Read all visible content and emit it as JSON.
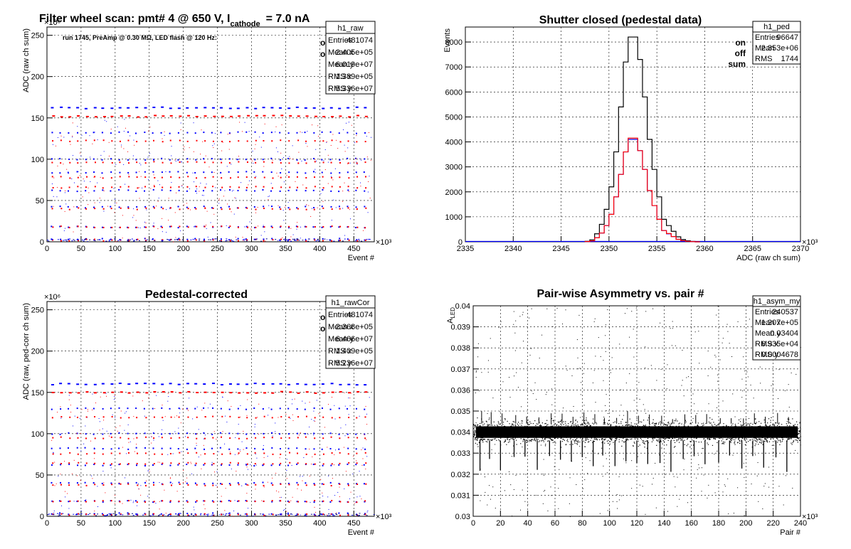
{
  "chart_data": [
    {
      "id": "raw",
      "type": "scatter",
      "title": "Filter wheel scan: pmt#   4 @   650 V, I",
      "title_sub": "cathode",
      "title_tail": "= 7.0 nA",
      "note": "run 1745, PreAmp @ 0.30 MΩ, LED flash @  120 Hz:",
      "xlabel": "Event #",
      "ylabel": "ADC (raw ch sum)",
      "x_mult": "×10³",
      "y_mult": "×10⁶",
      "xlim": [
        0,
        480
      ],
      "ylim": [
        0,
        260
      ],
      "xticks": [
        0,
        50,
        100,
        150,
        200,
        250,
        300,
        350,
        400,
        450
      ],
      "yticks": [
        0,
        50,
        100,
        150,
        200,
        250
      ],
      "legend": [
        {
          "label": "on",
          "color": "#0000ff"
        },
        {
          "label": "off",
          "color": "#ff0000"
        }
      ],
      "stats": {
        "name": "h1_raw",
        "rows": [
          [
            "Entries",
            "481074"
          ],
          [
            "Mean x",
            "2.405e+05"
          ],
          [
            "Mean y",
            "6.019e+07"
          ],
          [
            "RMS x",
            "1.389e+05"
          ],
          [
            "RMS y",
            "5.336e+07"
          ]
        ]
      },
      "series": [
        {
          "name": "on",
          "color": "#0000ff",
          "levels": [
            162,
            132,
            100,
            84,
            62,
            42,
            18,
            3
          ]
        },
        {
          "name": "off",
          "color": "#ff0000",
          "levels": [
            152,
            122,
            96,
            78,
            66,
            40,
            18,
            2
          ]
        }
      ]
    },
    {
      "id": "ped",
      "type": "line",
      "title": "Shutter closed (pedestal data)",
      "xlabel": "ADC (raw ch sum)",
      "ylabel": "Events",
      "x_mult": "×10³",
      "xlim": [
        2335,
        2370
      ],
      "ylim": [
        0,
        8600
      ],
      "xticks": [
        2335,
        2340,
        2345,
        2350,
        2355,
        2360,
        2365,
        2370
      ],
      "yticks": [
        0,
        1000,
        2000,
        3000,
        4000,
        5000,
        6000,
        7000,
        8000
      ],
      "legend": [
        {
          "label": "on",
          "color": "#0000ff"
        },
        {
          "label": "off",
          "color": "#ff0000"
        },
        {
          "label": "sum",
          "color": "#000000"
        }
      ],
      "stats": {
        "name": "h1_ped",
        "rows": [
          [
            "Entries",
            "96647"
          ],
          [
            "Mean",
            "2.353e+06"
          ],
          [
            "RMS",
            "1744"
          ]
        ]
      },
      "bin_width": 0.5,
      "x": [
        2347.5,
        2348,
        2348.5,
        2349,
        2349.5,
        2350,
        2350.5,
        2351,
        2351.5,
        2352,
        2352.5,
        2353,
        2353.5,
        2354,
        2354.5,
        2355,
        2355.5,
        2356,
        2356.5,
        2357,
        2357.5,
        2358,
        2358.5,
        2359
      ],
      "series": [
        {
          "name": "sum",
          "color": "#000000",
          "values": [
            20,
            80,
            320,
            700,
            1300,
            2200,
            3600,
            5400,
            7200,
            8200,
            8200,
            7300,
            5800,
            4100,
            2900,
            1800,
            900,
            650,
            420,
            200,
            90,
            40,
            15,
            0
          ]
        },
        {
          "name": "on",
          "color": "#0000ff",
          "values": [
            10,
            40,
            160,
            350,
            650,
            1100,
            1800,
            2700,
            3600,
            4100,
            4100,
            3650,
            2900,
            2050,
            1450,
            900,
            450,
            320,
            210,
            100,
            45,
            20,
            7,
            0
          ]
        },
        {
          "name": "off",
          "color": "#ff0000",
          "values": [
            10,
            40,
            160,
            350,
            650,
            1100,
            1800,
            2700,
            3600,
            4150,
            4150,
            3650,
            2900,
            2050,
            1450,
            900,
            450,
            330,
            210,
            100,
            45,
            20,
            8,
            0
          ]
        }
      ]
    },
    {
      "id": "cor",
      "type": "scatter",
      "title": "Pedestal-corrected",
      "xlabel": "Event #",
      "ylabel": "ADC (raw, ped-corr ch sum)",
      "x_mult": "×10³",
      "y_mult": "×10⁶",
      "xlim": [
        0,
        480
      ],
      "ylim": [
        0,
        260
      ],
      "xticks": [
        0,
        50,
        100,
        150,
        200,
        250,
        300,
        350,
        400,
        450
      ],
      "yticks": [
        0,
        50,
        100,
        150,
        200,
        250
      ],
      "legend": [
        {
          "label": "on",
          "color": "#0000ff"
        },
        {
          "label": "off",
          "color": "#ff0000"
        }
      ],
      "stats": {
        "name": "h1_rawCor",
        "rows": [
          [
            "Entries",
            "481074"
          ],
          [
            "Mean x",
            "2.368e+05"
          ],
          [
            "Mean y",
            "6.466e+07"
          ],
          [
            "RMS x",
            "1.409e+05"
          ],
          [
            "RMS y",
            "5.236e+07"
          ]
        ]
      },
      "series": [
        {
          "name": "on",
          "color": "#0000ff",
          "levels": [
            160,
            130,
            100,
            82,
            62,
            40,
            18,
            3
          ]
        },
        {
          "name": "off",
          "color": "#ff0000",
          "levels": [
            150,
            120,
            95,
            76,
            64,
            38,
            18,
            2
          ]
        }
      ]
    },
    {
      "id": "asym",
      "type": "scatter",
      "title": "Pair-wise Asymmetry vs. pair #",
      "xlabel": "Pair #",
      "ylabel": "A",
      "ylabel_sub": "LED",
      "x_mult": "×10³",
      "xlim": [
        0,
        240
      ],
      "ylim": [
        0.03,
        0.04
      ],
      "xticks": [
        0,
        20,
        40,
        60,
        80,
        100,
        120,
        140,
        160,
        180,
        200,
        220,
        240
      ],
      "yticks": [
        0.03,
        0.031,
        0.032,
        0.033,
        0.034,
        0.035,
        0.036,
        0.037,
        0.038,
        0.039,
        0.04
      ],
      "ytick_labels": [
        "0.03",
        "0.031",
        "0.032",
        "0.033",
        "0.034",
        "0.035",
        "0.036",
        "0.037",
        "0.038",
        "0.039",
        "0.04"
      ],
      "stats": {
        "name": "h1_asym_my",
        "rows": [
          [
            "Entries",
            "240537"
          ],
          [
            "Mean x",
            "1.207e+05"
          ],
          [
            "Mean y",
            "0.03404"
          ],
          [
            "RMS x",
            "6.935e+04"
          ],
          [
            "RMS y",
            "0.0004678"
          ]
        ]
      },
      "band_center": 0.034,
      "band_halfwidth": 0.0005,
      "dips_x": [
        5,
        12,
        20,
        30,
        38,
        47,
        56,
        64,
        72,
        80,
        88,
        95,
        104,
        112,
        120,
        128,
        137,
        145,
        154,
        162,
        170,
        180,
        188,
        197,
        205,
        213,
        222,
        230
      ]
    }
  ]
}
